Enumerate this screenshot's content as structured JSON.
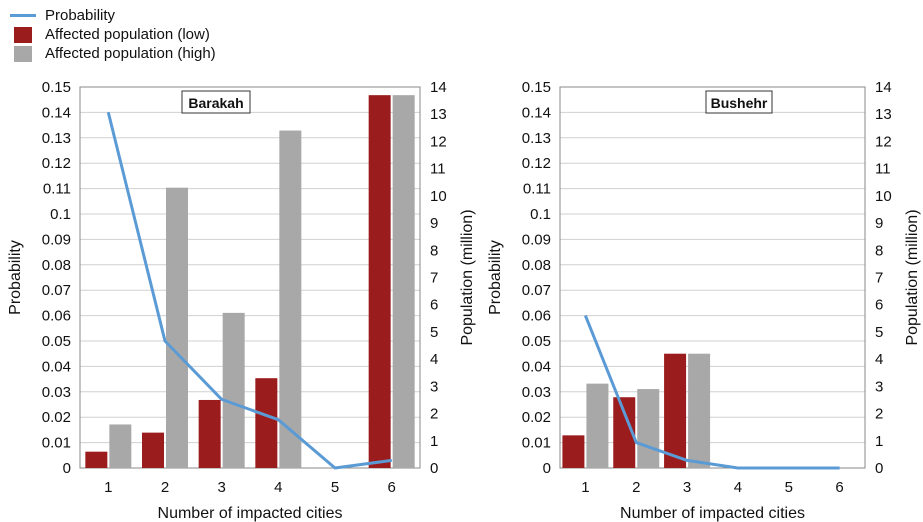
{
  "legend": {
    "probability": "Probability",
    "low": "Affected population  (low)",
    "high": "Affected population  (high)"
  },
  "colors": {
    "line": "#5b9bd5",
    "low": "#9b1c1c",
    "high": "#a8a8a8"
  },
  "chart_data": [
    {
      "type": "bar",
      "title": "Barakah",
      "xlabel": "Number of impacted cities",
      "ylabel": "Probability",
      "y2label": "Population (million)",
      "categories": [
        "1",
        "2",
        "3",
        "4",
        "5",
        "6"
      ],
      "ylim": [
        0,
        0.15
      ],
      "y2lim": [
        0,
        14
      ],
      "yticks": [
        "0",
        "0.01",
        "0.02",
        "0.03",
        "0.04",
        "0.05",
        "0.06",
        "0.07",
        "0.08",
        "0.09",
        "0.1",
        "0.11",
        "0.12",
        "0.13",
        "0.14",
        "0.15"
      ],
      "y2ticks": [
        "0",
        "1",
        "2",
        "3",
        "4",
        "5",
        "6",
        "7",
        "8",
        "9",
        "10",
        "11",
        "12",
        "13",
        "14"
      ],
      "series": [
        {
          "name": "Probability",
          "kind": "line",
          "axis": "left",
          "values": [
            0.14,
            0.05,
            0.027,
            0.019,
            0.0,
            0.003
          ]
        },
        {
          "name": "Affected population  (low)",
          "kind": "bar",
          "axis": "right",
          "values": [
            0.6,
            1.3,
            2.5,
            3.3,
            null,
            13.7
          ]
        },
        {
          "name": "Affected population  (high)",
          "kind": "bar",
          "axis": "right",
          "values": [
            1.6,
            10.3,
            5.7,
            12.4,
            null,
            13.7
          ]
        }
      ]
    },
    {
      "type": "bar",
      "title": "Bushehr",
      "xlabel": "Number of impacted cities",
      "ylabel": "Probability",
      "y2label": "Population (million)",
      "categories": [
        "1",
        "2",
        "3",
        "4",
        "5",
        "6"
      ],
      "ylim": [
        0,
        0.15
      ],
      "y2lim": [
        0,
        14
      ],
      "yticks": [
        "0",
        "0.01",
        "0.02",
        "0.03",
        "0.04",
        "0.05",
        "0.06",
        "0.07",
        "0.08",
        "0.09",
        "0.1",
        "0.11",
        "0.12",
        "0.13",
        "0.14",
        "0.15"
      ],
      "y2ticks": [
        "0",
        "1",
        "2",
        "3",
        "4",
        "5",
        "6",
        "7",
        "8",
        "9",
        "10",
        "11",
        "12",
        "13",
        "14"
      ],
      "series": [
        {
          "name": "Probability",
          "kind": "line",
          "axis": "left",
          "values": [
            0.06,
            0.01,
            0.003,
            0.0,
            0.0,
            0.0
          ]
        },
        {
          "name": "Affected population  (low)",
          "kind": "bar",
          "axis": "right",
          "values": [
            1.2,
            2.6,
            4.2,
            null,
            null,
            null
          ]
        },
        {
          "name": "Affected population  (high)",
          "kind": "bar",
          "axis": "right",
          "values": [
            3.1,
            2.9,
            4.2,
            null,
            null,
            null
          ]
        }
      ]
    }
  ]
}
